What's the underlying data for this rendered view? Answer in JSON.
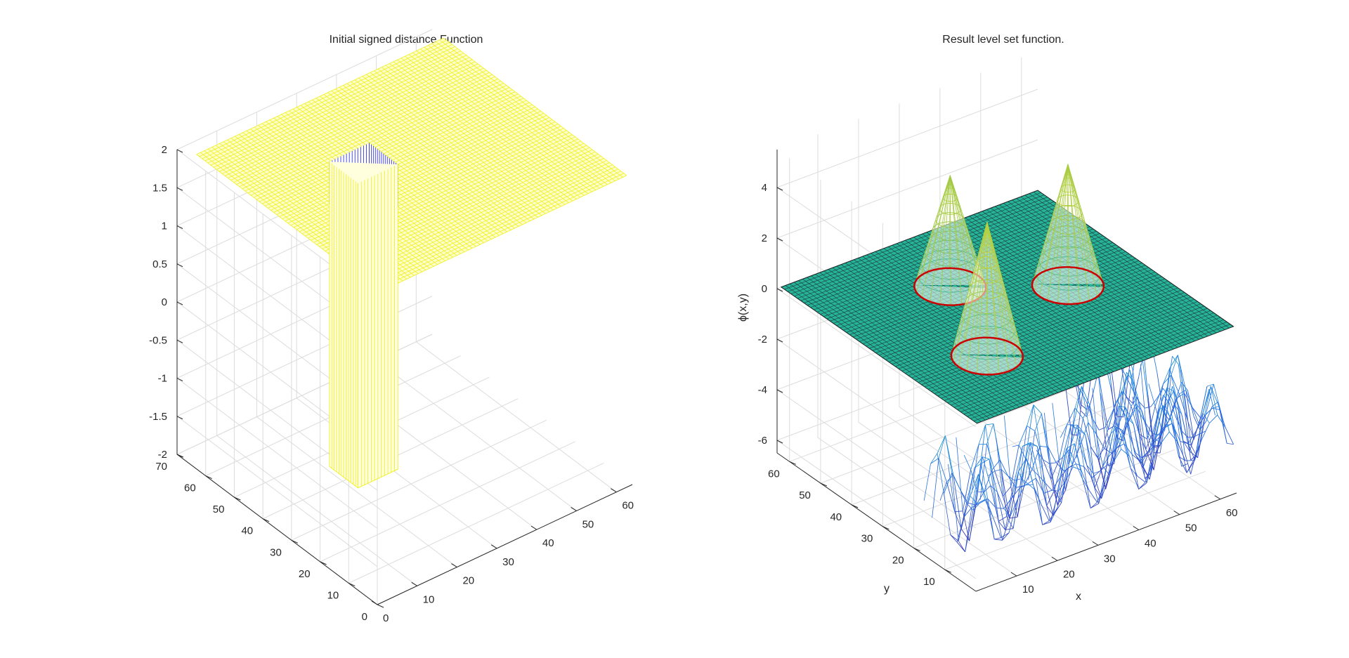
{
  "chart_data": [
    {
      "type": "surface",
      "title": "Initial signed distance Function",
      "xlabel": "",
      "ylabel": "",
      "zlabel": "",
      "xlim": [
        0,
        64
      ],
      "ylim": [
        0,
        70
      ],
      "zlim": [
        -2,
        2
      ],
      "xticks": [
        "0",
        "10",
        "20",
        "30",
        "40",
        "50",
        "60"
      ],
      "yticks": [
        "0",
        "10",
        "20",
        "30",
        "40",
        "50",
        "60",
        "70"
      ],
      "zticks": [
        "-2",
        "-1.5",
        "-1",
        "-0.5",
        "0",
        "0.5",
        "1",
        "1.5",
        "2"
      ],
      "grid": true,
      "surface_description": {
        "outer_value": 2,
        "inner_value": -2,
        "inner_region_x": [
          21,
          31
        ],
        "inner_region_y": [
          36,
          46
        ]
      },
      "colors": {
        "high": "#f0f030",
        "low": "#3a3adc"
      }
    },
    {
      "type": "surface",
      "title": "Result level set function.",
      "xlabel": "x",
      "ylabel": "y",
      "zlabel": "ϕ(x,y)",
      "xlim": [
        0,
        64
      ],
      "ylim": [
        0,
        64
      ],
      "zlim": [
        -6.5,
        5.5
      ],
      "xticks": [
        "10",
        "20",
        "30",
        "40",
        "50",
        "60"
      ],
      "yticks": [
        "10",
        "20",
        "30",
        "40",
        "50",
        "60"
      ],
      "zticks": [
        "-6",
        "-4",
        "-2",
        "0",
        "2",
        "4"
      ],
      "grid": true,
      "plane_value": 0,
      "cones": [
        {
          "x": 18,
          "y": 20,
          "peak": 5.3
        },
        {
          "x": 28,
          "y": 45,
          "peak": 4.4
        },
        {
          "x": 47,
          "y": 32,
          "peak": 4.8
        }
      ],
      "colors": {
        "plane": "#26b39a",
        "high": "#f0e040",
        "low": "#3a3adc",
        "contour": "#cc0000"
      }
    }
  ]
}
